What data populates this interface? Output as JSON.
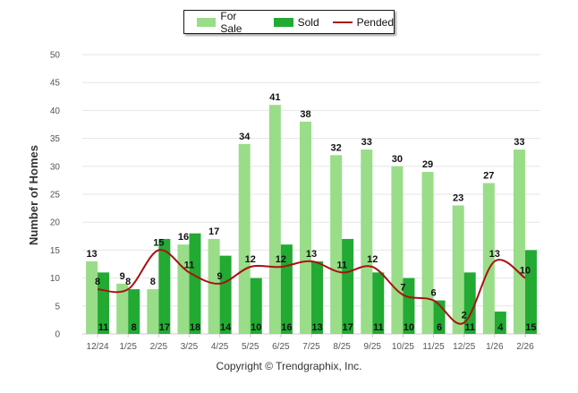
{
  "chart_data": {
    "type": "bar",
    "ylabel": "Number of Homes",
    "xlabel": "",
    "ylim": [
      0,
      50
    ],
    "yticks": [
      0,
      5,
      10,
      15,
      20,
      25,
      30,
      35,
      40,
      45,
      50
    ],
    "grid": true,
    "legend_position": "top-center",
    "categories": [
      "12/24",
      "1/25",
      "2/25",
      "3/25",
      "4/25",
      "5/25",
      "6/25",
      "7/25",
      "8/25",
      "9/25",
      "10/25",
      "11/25",
      "12/25",
      "1/26",
      "2/26"
    ],
    "series": [
      {
        "name": "For Sale",
        "type": "bar",
        "color": "#99dd88",
        "values": [
          13,
          9,
          8,
          16,
          17,
          34,
          41,
          38,
          32,
          33,
          30,
          29,
          23,
          27,
          33
        ]
      },
      {
        "name": "Sold",
        "type": "bar",
        "color": "#22aa33",
        "values": [
          11,
          8,
          17,
          18,
          14,
          10,
          16,
          13,
          17,
          11,
          10,
          6,
          11,
          4,
          15
        ]
      },
      {
        "name": "Pended",
        "type": "line",
        "color": "#aa1111",
        "values": [
          8,
          8,
          15,
          11,
          9,
          12,
          12,
          13,
          11,
          12,
          7,
          6,
          2,
          13,
          10
        ]
      }
    ]
  },
  "footer": {
    "copyright": "Copyright © Trendgraphix, Inc."
  }
}
